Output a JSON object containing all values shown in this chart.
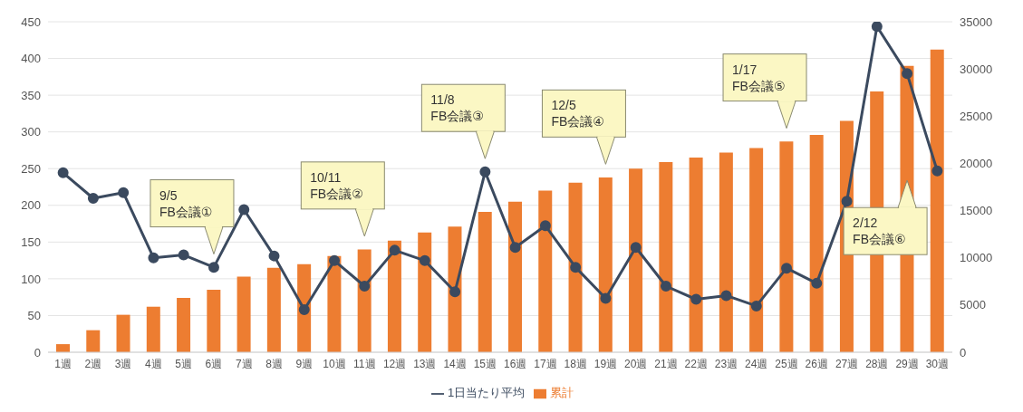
{
  "chart_data": {
    "type": "bar",
    "categories": [
      "1週",
      "2週",
      "3週",
      "4週",
      "5週",
      "6週",
      "7週",
      "8週",
      "9週",
      "10週",
      "11週",
      "12週",
      "13週",
      "14週",
      "15週",
      "16週",
      "17週",
      "18週",
      "19週",
      "20週",
      "21週",
      "22週",
      "23週",
      "24週",
      "25週",
      "26週",
      "27週",
      "28週",
      "29週",
      "30週"
    ],
    "series": [
      {
        "name": "累計",
        "color": "#ed7d31",
        "values": [
          11,
          30,
          51,
          62,
          74,
          85,
          103,
          115,
          120,
          131,
          140,
          152,
          163,
          171,
          191,
          205,
          220,
          231,
          238,
          250,
          259,
          265,
          272,
          278,
          287,
          296,
          315,
          355,
          390,
          412
        ]
      },
      {
        "name": "1日当たり平均",
        "type": "line",
        "axis": "y2",
        "color": "#3b4a5f",
        "marker": "circle",
        "values": [
          19000,
          16300,
          16900,
          10000,
          10300,
          9000,
          15100,
          10200,
          4500,
          9700,
          7000,
          10800,
          9700,
          6400,
          19100,
          11100,
          13400,
          9000,
          5700,
          11100,
          7000,
          5600,
          6000,
          4900,
          8900,
          7300,
          16000,
          34500,
          29500,
          19200
        ]
      }
    ],
    "ylim": [
      0,
      450
    ],
    "yticks": [
      0,
      50,
      100,
      150,
      200,
      250,
      300,
      350,
      400,
      450
    ],
    "y2lim": [
      0,
      35000
    ],
    "y2ticks": [
      0,
      5000,
      10000,
      15000,
      20000,
      25000,
      30000,
      35000
    ],
    "grid": "y",
    "legend": "bottom",
    "annotations": [
      "9/5\nFB会議①",
      "10/11\nFB会議②",
      "11/8\nFB会議③",
      "12/5\nFB会議④",
      "1/17\nFB会議⑤",
      "2/12\nFB会議⑥"
    ]
  }
}
